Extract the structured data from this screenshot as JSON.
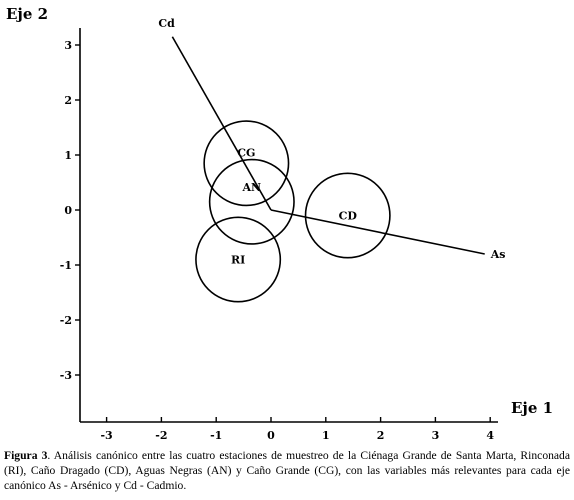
{
  "chart_data": {
    "type": "scatter",
    "xlabel": "Eje 1",
    "ylabel": "Eje 2",
    "xlim": [
      -3.3,
      4.3
    ],
    "ylim": [
      -3.8,
      3.4
    ],
    "x_ticks": [
      -3,
      -2,
      -1,
      0,
      1,
      2,
      3,
      4
    ],
    "x_tick_labels": [
      "-3",
      "-2",
      "-1",
      "0",
      "1",
      "2",
      "3",
      "4"
    ],
    "y_ticks": [
      3,
      2,
      1,
      0,
      -1,
      -2,
      -3
    ],
    "y_tick_labels": [
      "3",
      "2",
      "1",
      "0",
      "-1",
      "-2",
      "-3"
    ],
    "stations": [
      {
        "label": "CG",
        "x": -0.45,
        "y": 0.85,
        "radius": 0.77
      },
      {
        "label": "AN",
        "x": -0.35,
        "y": 0.15,
        "radius": 0.77
      },
      {
        "label": "CD",
        "x": 1.4,
        "y": -0.1,
        "radius": 0.77
      },
      {
        "label": "RI",
        "x": -0.6,
        "y": -0.9,
        "radius": 0.77
      }
    ],
    "vectors": [
      {
        "label": "Cd",
        "x": -1.8,
        "y": 3.15
      },
      {
        "label": "As",
        "x": 3.9,
        "y": -0.8
      }
    ],
    "origin": [
      0,
      0
    ]
  },
  "caption": {
    "label": "Figura 3",
    "text": ". Análisis canónico entre las cuatro estaciones de muestreo de la Ciénaga Grande de Santa Marta, Rinconada (RI), Caño Dragado (CD), Aguas Negras (AN) y Caño Grande (CG), con las variables más relevantes para cada eje canónico As - Arsénico y Cd - Cadmio."
  }
}
